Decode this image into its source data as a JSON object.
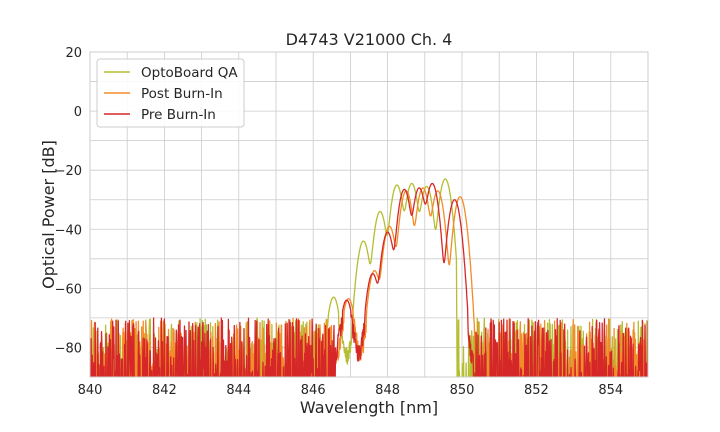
{
  "chart_data": {
    "type": "line",
    "title": "D4743 V21000 Ch. 4",
    "xlabel": "Wavelength [nm]",
    "ylabel": "Optical Power [dB]",
    "xlim": [
      840,
      855
    ],
    "ylim": [
      -90,
      20
    ],
    "xticks": [
      840,
      842,
      844,
      846,
      848,
      850,
      852,
      854
    ],
    "yticks": [
      20,
      0,
      -20,
      -40,
      -60,
      -80
    ],
    "x_tick_labels": [
      "840",
      "842",
      "844",
      "846",
      "848",
      "850",
      "852",
      "854"
    ],
    "y_tick_labels": [
      "20",
      "0",
      "−20",
      "−40",
      "−60",
      "−80"
    ],
    "grid": true,
    "legend_position": "top-left",
    "noise_floor_db": -80,
    "series": [
      {
        "name": "OptoBoard QA",
        "color": "#b5bd30",
        "peaks": [
          {
            "x": 846.55,
            "y": -63
          },
          {
            "x": 847.35,
            "y": -44
          },
          {
            "x": 847.8,
            "y": -34
          },
          {
            "x": 848.25,
            "y": -25
          },
          {
            "x": 848.65,
            "y": -24.5
          },
          {
            "x": 849.05,
            "y": -25.5
          },
          {
            "x": 849.55,
            "y": -23
          }
        ],
        "signal_range": [
          846.2,
          849.85
        ]
      },
      {
        "name": "Post Burn-In",
        "color": "#f28c28",
        "peaks": [
          {
            "x": 846.95,
            "y": -63.5
          },
          {
            "x": 847.65,
            "y": -54
          },
          {
            "x": 848.05,
            "y": -39
          },
          {
            "x": 848.5,
            "y": -27
          },
          {
            "x": 848.95,
            "y": -26
          },
          {
            "x": 849.35,
            "y": -27
          },
          {
            "x": 849.95,
            "y": -29
          }
        ],
        "signal_range": [
          846.6,
          850.35
        ]
      },
      {
        "name": "Pre Burn-In",
        "color": "#d62728",
        "peaks": [
          {
            "x": 846.9,
            "y": -64
          },
          {
            "x": 847.6,
            "y": -55
          },
          {
            "x": 848.0,
            "y": -41
          },
          {
            "x": 848.45,
            "y": -26.5
          },
          {
            "x": 848.85,
            "y": -26
          },
          {
            "x": 849.2,
            "y": -24.5
          },
          {
            "x": 849.8,
            "y": -30
          }
        ],
        "signal_range": [
          846.6,
          850.3
        ]
      }
    ]
  }
}
